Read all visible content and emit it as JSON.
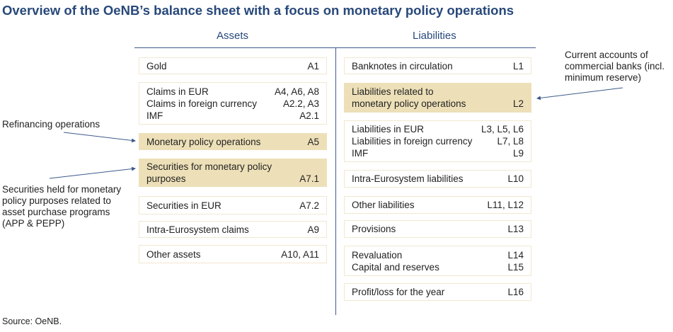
{
  "title": "Overview of the OeNB’s balance sheet with a focus on monetary policy operations",
  "assets_header": "Assets",
  "liabilities_header": "Liabilities",
  "assets": [
    {
      "rows": [
        [
          "Gold",
          "A1"
        ]
      ],
      "highlight": false
    },
    {
      "rows": [
        [
          "Claims in EUR",
          "A4, A6, A8"
        ],
        [
          "Claims in foreign currency",
          "A2.2, A3"
        ],
        [
          "IMF",
          "A2.1"
        ]
      ],
      "highlight": false
    },
    {
      "rows": [
        [
          "Monetary policy operations",
          "A5"
        ]
      ],
      "highlight": true
    },
    {
      "rows": [
        [
          "Securities for monetary policy",
          ""
        ],
        [
          "purposes",
          "A7.1"
        ]
      ],
      "highlight": true
    },
    {
      "rows": [
        [
          "Securities in EUR",
          "A7.2"
        ]
      ],
      "highlight": false
    },
    {
      "rows": [
        [
          "Intra-Eurosystem claims",
          "A9"
        ]
      ],
      "highlight": false
    },
    {
      "rows": [
        [
          "Other assets",
          "A10, A11"
        ]
      ],
      "highlight": false
    }
  ],
  "liabilities": [
    {
      "rows": [
        [
          "Banknotes in circulation",
          "L1"
        ]
      ],
      "highlight": false
    },
    {
      "rows": [
        [
          "Liabilities related to",
          ""
        ],
        [
          "monetary policy operations",
          "L2"
        ]
      ],
      "highlight": true
    },
    {
      "rows": [
        [
          "Liabilities in EUR",
          "L3, L5, L6"
        ],
        [
          "Liabilities in foreign currency",
          "L7, L8"
        ],
        [
          "IMF",
          "L9"
        ]
      ],
      "highlight": false
    },
    {
      "rows": [
        [
          "Intra-Eurosystem liabilities",
          "L10"
        ]
      ],
      "highlight": false
    },
    {
      "rows": [
        [
          "Other liabilities",
          "L11, L12"
        ]
      ],
      "highlight": false
    },
    {
      "rows": [
        [
          "Provisions",
          "L13"
        ]
      ],
      "highlight": false
    },
    {
      "rows": [
        [
          "Revaluation",
          "L14"
        ],
        [
          "Capital and reserves",
          "L15"
        ]
      ],
      "highlight": false
    },
    {
      "rows": [
        [
          "Profit/loss for the year",
          "L16"
        ]
      ],
      "highlight": false
    }
  ],
  "notes": {
    "refinancing": "Refinancing operations",
    "securities_held": "Securities held for monetary policy purposes related to asset purchase programs (APP & PEPP)",
    "current_accounts": "Current accounts of commercial banks (incl. minimum reserve)"
  },
  "source": "Source: OeNB.",
  "colors": {
    "title": "#27487a",
    "highlight": "#ede0b8",
    "line": "#3d5a8a"
  }
}
